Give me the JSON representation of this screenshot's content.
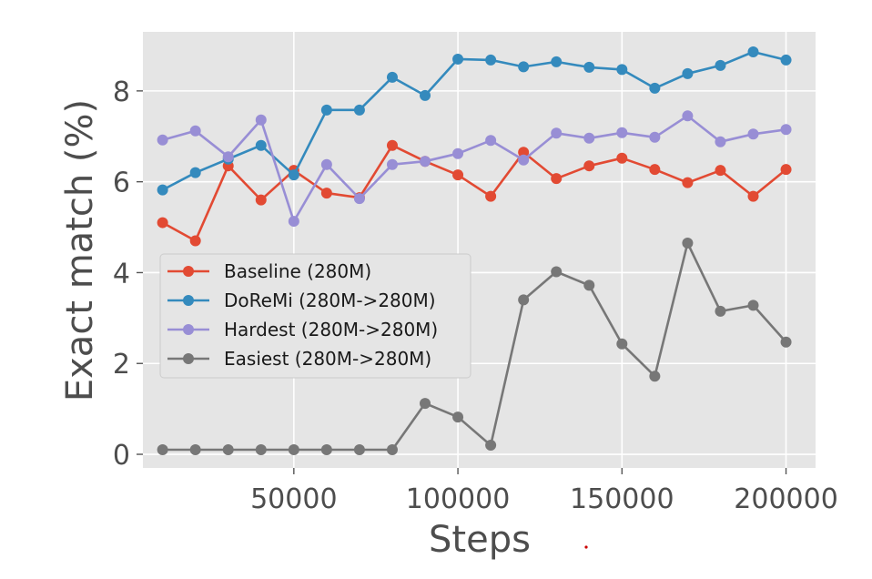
{
  "chart_data": {
    "type": "line",
    "xlabel": "Steps",
    "ylabel": "Exact match (%)",
    "xlim": [
      4000,
      209000
    ],
    "ylim": [
      -0.3,
      9.3
    ],
    "xticks": [
      50000,
      100000,
      150000,
      200000
    ],
    "xtick_labels": [
      "50000",
      "100000",
      "150000",
      "200000"
    ],
    "yticks": [
      0,
      2,
      4,
      6,
      8
    ],
    "ytick_labels": [
      "0",
      "2",
      "4",
      "6",
      "8"
    ],
    "grid": true,
    "legend_position": "center-left",
    "x": [
      10000,
      20000,
      30000,
      40000,
      50000,
      60000,
      70000,
      80000,
      90000,
      100000,
      110000,
      120000,
      130000,
      140000,
      150000,
      160000,
      170000,
      180000,
      190000,
      200000
    ],
    "series": [
      {
        "name": "Baseline (280M)",
        "color": "#E24A33",
        "values": [
          5.1,
          4.7,
          6.35,
          5.6,
          6.25,
          5.75,
          5.65,
          6.8,
          6.45,
          6.15,
          5.68,
          6.65,
          6.07,
          6.35,
          6.52,
          6.27,
          5.98,
          6.25,
          5.68,
          6.27
        ]
      },
      {
        "name": "DoReMi (280M->280M)",
        "color": "#348ABD",
        "values": [
          5.82,
          6.2,
          6.5,
          6.8,
          6.15,
          7.58,
          7.58,
          8.3,
          7.9,
          8.7,
          8.68,
          8.53,
          8.64,
          8.52,
          8.47,
          8.06,
          8.38,
          8.56,
          8.86,
          8.68
        ]
      },
      {
        "name": "Hardest (280M->280M)",
        "color": "#988ED5",
        "values": [
          6.92,
          7.12,
          6.55,
          7.36,
          5.13,
          6.38,
          5.63,
          6.38,
          6.45,
          6.62,
          6.91,
          6.48,
          7.07,
          6.96,
          7.08,
          6.98,
          7.45,
          6.88,
          7.05,
          7.15
        ]
      },
      {
        "name": "Easiest (280M->280M)",
        "color": "#777777",
        "values": [
          0.1,
          0.1,
          0.1,
          0.1,
          0.1,
          0.1,
          0.1,
          0.1,
          1.12,
          0.82,
          0.2,
          3.4,
          4.02,
          3.72,
          2.43,
          1.72,
          4.65,
          3.15,
          3.28,
          2.47
        ]
      }
    ]
  }
}
